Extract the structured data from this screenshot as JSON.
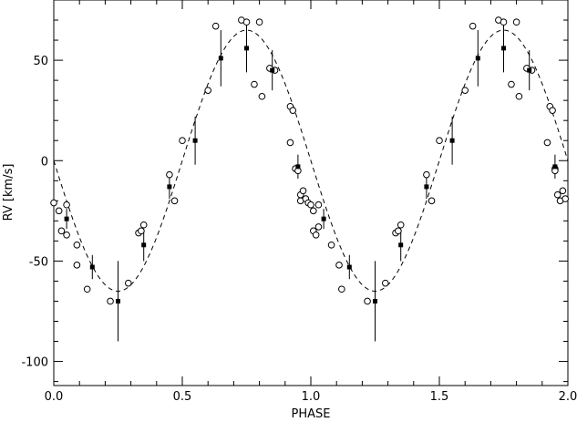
{
  "chart_data": {
    "type": "scatter",
    "title": "",
    "xlabel": "PHASE",
    "ylabel": "RV [km/s]",
    "xlim": [
      0.0,
      2.0
    ],
    "ylim": [
      -112,
      80
    ],
    "x_ticks": [
      {
        "value": 0.0,
        "label": "0.0"
      },
      {
        "value": 0.5,
        "label": "0.5"
      },
      {
        "value": 1.0,
        "label": "1.0"
      },
      {
        "value": 1.5,
        "label": "1.5"
      },
      {
        "value": 2.0,
        "label": "2.0"
      }
    ],
    "y_ticks": [
      {
        "value": -100,
        "label": "-100"
      },
      {
        "value": -50,
        "label": "-50"
      },
      {
        "value": 0,
        "label": "0"
      },
      {
        "value": 50,
        "label": "50"
      }
    ],
    "grid": false,
    "legend": "none",
    "colors": {
      "axis": "#000000",
      "marks": "#000000",
      "background": "#ffffff"
    },
    "model_curve": {
      "style": "dashed",
      "type": "sinusoid",
      "period": 1.0,
      "amplitude": 65,
      "offset": 0,
      "phase_of_minimum": 0.25
    },
    "series": [
      {
        "marker": "open-circle",
        "x": [
          0.0,
          0.02,
          0.03,
          0.05,
          0.05,
          0.09,
          0.09,
          0.13,
          0.22,
          0.29,
          0.33,
          0.34,
          0.35,
          0.45,
          0.47,
          0.5,
          0.6,
          0.63,
          0.73,
          0.75,
          0.78,
          0.8,
          0.81,
          0.84,
          0.86,
          0.92,
          0.92,
          0.93,
          0.94,
          0.95,
          0.96,
          0.96,
          0.97,
          0.98,
          0.99,
          1.0,
          1.01,
          1.01,
          1.02,
          1.03,
          1.03,
          1.08,
          1.11,
          1.12,
          1.22,
          1.29,
          1.33,
          1.34,
          1.35,
          1.45,
          1.47,
          1.5,
          1.6,
          1.63,
          1.73,
          1.75,
          1.78,
          1.8,
          1.81,
          1.84,
          1.86,
          1.92,
          1.93,
          1.94,
          1.95,
          1.95,
          1.96,
          1.97,
          1.98,
          1.99
        ],
        "y": [
          -21,
          -25,
          -35,
          -37,
          -22,
          -42,
          -52,
          -64,
          -70,
          -61,
          -36,
          -35,
          -32,
          -7,
          -20,
          10,
          35,
          67,
          70,
          69,
          38,
          69,
          32,
          46,
          45,
          27,
          9,
          25,
          -4,
          -5,
          -17,
          -20,
          -15,
          -19,
          -21,
          -22,
          -25,
          -35,
          -37,
          -22,
          -33,
          -42,
          -52,
          -64,
          -70,
          -61,
          -36,
          -35,
          -32,
          -7,
          -20,
          10,
          35,
          67,
          70,
          69,
          38,
          69,
          32,
          46,
          45,
          9,
          27,
          25,
          -4,
          -5,
          -17,
          -20,
          -15,
          -19
        ]
      },
      {
        "marker": "filled-square",
        "errorbars": true,
        "x": [
          0.05,
          0.15,
          0.25,
          0.35,
          0.45,
          0.55,
          0.65,
          0.75,
          0.85,
          0.95,
          1.05,
          1.15,
          1.25,
          1.35,
          1.45,
          1.55,
          1.65,
          1.75,
          1.85,
          1.95
        ],
        "y": [
          -29,
          -53,
          -70,
          -42,
          -13,
          10,
          51,
          56,
          45,
          -3,
          -29,
          -53,
          -70,
          -42,
          -13,
          10,
          51,
          56,
          45,
          -3
        ],
        "yerr": [
          5,
          6,
          20,
          8,
          6,
          12,
          14,
          12,
          10,
          6,
          5,
          6,
          20,
          8,
          6,
          12,
          14,
          12,
          10,
          6
        ]
      }
    ]
  }
}
